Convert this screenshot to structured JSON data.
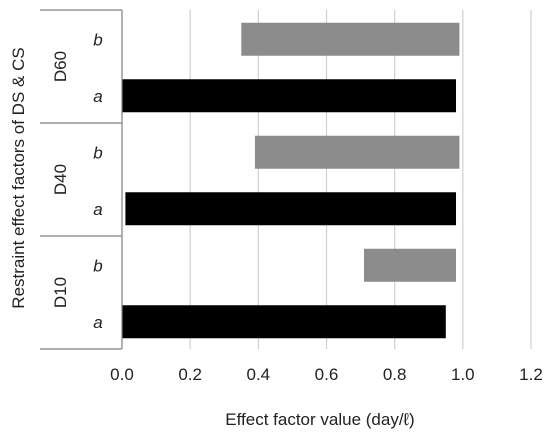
{
  "chart_data": {
    "type": "bar",
    "orientation": "horizontal",
    "title": "",
    "xlabel": "Effect factor value (day/ℓ)",
    "ylabel": "Restraint effect factors of DS & CS",
    "xlim": [
      0.0,
      1.2
    ],
    "xticks": [
      "0.0",
      "0.2",
      "0.4",
      "0.6",
      "0.8",
      "1.0",
      "1.2"
    ],
    "grid": "vertical",
    "legend": "none",
    "colors": {
      "a": "#000000",
      "b": "#8c8c8c",
      "grid": "#d0d0d0",
      "axis": "#808080"
    },
    "groups": [
      {
        "name": "D60",
        "bars": [
          {
            "label": "b",
            "start": 0.35,
            "end": 0.99
          },
          {
            "label": "a",
            "start": 0.0,
            "end": 0.98
          }
        ]
      },
      {
        "name": "D40",
        "bars": [
          {
            "label": "b",
            "start": 0.39,
            "end": 0.99
          },
          {
            "label": "a",
            "start": 0.01,
            "end": 0.98
          }
        ]
      },
      {
        "name": "D10",
        "bars": [
          {
            "label": "b",
            "start": 0.71,
            "end": 0.98
          },
          {
            "label": "a",
            "start": 0.0,
            "end": 0.95
          }
        ]
      }
    ]
  }
}
